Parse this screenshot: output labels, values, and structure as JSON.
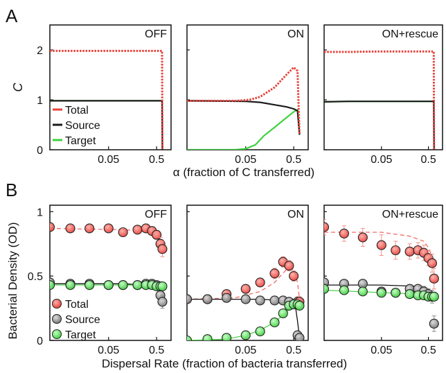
{
  "colors": {
    "total": "#e8413a",
    "source": "#1a1a1a",
    "target": "#3fd13f"
  },
  "chart_data": [
    {
      "panel_letter": "A",
      "type": "line",
      "ylabel": "C",
      "xlabel": "α (fraction of C transferred)",
      "x_scale": "log",
      "xlim": [
        0.003,
        1
      ],
      "ylim": [
        0,
        2.5
      ],
      "y_ticks": [
        "0",
        "1",
        "2"
      ],
      "x_ticks": [
        "0.05",
        "0.5"
      ],
      "legend": [
        "Total",
        "Source",
        "Target"
      ],
      "legend_position": "bottom-left of first subplot",
      "subplots": [
        {
          "title": "OFF",
          "series": [
            {
              "name": "Total",
              "style": "dotted",
              "x": [
                0.003,
                0.01,
                0.05,
                0.2,
                0.5,
                0.6,
                0.65,
                0.66
              ],
              "y": [
                1.98,
                1.98,
                1.98,
                1.98,
                1.98,
                1.98,
                1.98,
                0.0
              ]
            },
            {
              "name": "Source",
              "style": "solid",
              "x": [
                0.003,
                0.01,
                0.05,
                0.2,
                0.5,
                0.6,
                0.65,
                0.66
              ],
              "y": [
                0.98,
                0.98,
                0.98,
                0.98,
                0.98,
                0.98,
                0.98,
                0.0
              ]
            },
            {
              "name": "Target",
              "style": "solid",
              "x": [
                0.003,
                0.01,
                0.05,
                0.2,
                0.5,
                0.6,
                0.65
              ],
              "y": [
                0.98,
                0.98,
                0.98,
                0.98,
                0.98,
                0.98,
                0.98
              ]
            }
          ]
        },
        {
          "title": "ON",
          "series": [
            {
              "name": "Total",
              "style": "dotted",
              "x": [
                0.003,
                0.03,
                0.06,
                0.1,
                0.2,
                0.35,
                0.5,
                0.6,
                0.66
              ],
              "y": [
                0.98,
                0.98,
                1.0,
                1.06,
                1.25,
                1.5,
                1.65,
                1.58,
                0.3
              ]
            },
            {
              "name": "Source",
              "style": "solid",
              "x": [
                0.003,
                0.05,
                0.1,
                0.2,
                0.35,
                0.5,
                0.6,
                0.66
              ],
              "y": [
                0.98,
                0.97,
                0.95,
                0.9,
                0.86,
                0.82,
                0.78,
                0.3
              ]
            },
            {
              "name": "Target",
              "style": "solid",
              "x": [
                0.003,
                0.03,
                0.05,
                0.08,
                0.12,
                0.2,
                0.35,
                0.5,
                0.6,
                0.66
              ],
              "y": [
                0.0,
                0.0,
                0.02,
                0.1,
                0.28,
                0.45,
                0.64,
                0.76,
                0.8,
                0.3
              ]
            }
          ]
        },
        {
          "title": "ON+rescue",
          "series": [
            {
              "name": "Total",
              "style": "dotted",
              "x": [
                0.003,
                0.01,
                0.05,
                0.2,
                0.5,
                0.65,
                0.66
              ],
              "y": [
                1.96,
                1.96,
                1.97,
                1.97,
                1.97,
                1.97,
                0.0
              ]
            },
            {
              "name": "Source",
              "style": "solid",
              "x": [
                0.003,
                0.01,
                0.05,
                0.2,
                0.5,
                0.65,
                0.66
              ],
              "y": [
                0.96,
                0.97,
                0.97,
                0.97,
                0.97,
                0.97,
                0.0
              ]
            },
            {
              "name": "Target",
              "style": "solid",
              "x": [
                0.003,
                0.01,
                0.05,
                0.2,
                0.5,
                0.65
              ],
              "y": [
                0.96,
                0.97,
                0.97,
                0.97,
                0.97,
                0.97
              ]
            }
          ]
        }
      ]
    },
    {
      "panel_letter": "B",
      "type": "scatter",
      "ylabel": "Bacterial Density (OD)",
      "xlabel": "Dispersal Rate (fraction of bacteria transferred)",
      "x_scale": "log",
      "xlim": [
        0.003,
        1
      ],
      "ylim": [
        0,
        1.05
      ],
      "y_ticks": [
        "0",
        "0.5",
        "1"
      ],
      "x_ticks": [
        "0.05",
        "0.5"
      ],
      "legend": [
        "Total",
        "Source",
        "Target"
      ],
      "legend_position": "bottom-left of first subplot",
      "subplots": [
        {
          "title": "OFF",
          "series": [
            {
              "name": "Total",
              "x": [
                0.003,
                0.008,
                0.02,
                0.05,
                0.1,
                0.2,
                0.3,
                0.4,
                0.5,
                0.6,
                0.66
              ],
              "y": [
                0.88,
                0.87,
                0.87,
                0.87,
                0.84,
                0.86,
                0.87,
                0.85,
                0.82,
                0.75,
                0.71
              ],
              "err": [
                0.02,
                0.02,
                0.02,
                0.02,
                0.02,
                0.03,
                0.02,
                0.02,
                0.03,
                0.05,
                0.06
              ],
              "fit_x": [
                0.003,
                0.1,
                0.3,
                0.5,
                0.6,
                0.66
              ],
              "fit_y": [
                0.87,
                0.86,
                0.85,
                0.82,
                0.76,
                0.68
              ]
            },
            {
              "name": "Source",
              "x": [
                0.003,
                0.008,
                0.02,
                0.05,
                0.1,
                0.2,
                0.3,
                0.4,
                0.5,
                0.6,
                0.66
              ],
              "y": [
                0.45,
                0.44,
                0.44,
                0.43,
                0.43,
                0.43,
                0.44,
                0.44,
                0.43,
                0.35,
                0.3
              ],
              "err": [
                0.02,
                0.02,
                0.02,
                0.02,
                0.02,
                0.02,
                0.02,
                0.02,
                0.02,
                0.04,
                0.05
              ],
              "fit_x": [
                0.003,
                0.1,
                0.3,
                0.5,
                0.6,
                0.66
              ],
              "fit_y": [
                0.44,
                0.44,
                0.43,
                0.42,
                0.37,
                0.3
              ]
            },
            {
              "name": "Target",
              "x": [
                0.003,
                0.008,
                0.02,
                0.05,
                0.1,
                0.2,
                0.3,
                0.4,
                0.5,
                0.6,
                0.66
              ],
              "y": [
                0.43,
                0.43,
                0.43,
                0.43,
                0.43,
                0.43,
                0.43,
                0.43,
                0.42,
                0.42,
                0.42
              ],
              "err": [
                0.01,
                0.01,
                0.01,
                0.01,
                0.01,
                0.01,
                0.01,
                0.01,
                0.01,
                0.02,
                0.02
              ],
              "fit_x": [
                0.003,
                0.3,
                0.66
              ],
              "fit_y": [
                0.43,
                0.43,
                0.42
              ]
            }
          ]
        },
        {
          "title": "ON",
          "series": [
            {
              "name": "Total",
              "x": [
                0.003,
                0.008,
                0.02,
                0.05,
                0.1,
                0.2,
                0.3,
                0.4,
                0.5,
                0.6,
                0.66
              ],
              "y": [
                0.32,
                0.32,
                0.36,
                0.4,
                0.45,
                0.52,
                0.61,
                0.58,
                0.5,
                0.3,
                0.3
              ],
              "err": [
                0.02,
                0.02,
                0.03,
                0.03,
                0.03,
                0.04,
                0.04,
                0.04,
                0.04,
                0.04,
                0.04
              ],
              "fit_x": [
                0.003,
                0.03,
                0.1,
                0.2,
                0.35,
                0.5,
                0.6,
                0.66
              ],
              "fit_y": [
                0.32,
                0.33,
                0.38,
                0.45,
                0.55,
                0.55,
                0.45,
                0.32
              ]
            },
            {
              "name": "Source",
              "x": [
                0.003,
                0.008,
                0.02,
                0.05,
                0.1,
                0.2,
                0.3,
                0.4,
                0.5,
                0.6,
                0.66
              ],
              "y": [
                0.32,
                0.32,
                0.33,
                0.32,
                0.31,
                0.31,
                0.31,
                0.3,
                0.28,
                0.04,
                0.02
              ],
              "err": [
                0.02,
                0.02,
                0.02,
                0.02,
                0.02,
                0.02,
                0.02,
                0.03,
                0.03,
                0.02,
                0.02
              ],
              "fit_x": [
                0.003,
                0.1,
                0.3,
                0.45,
                0.55,
                0.6,
                0.66
              ],
              "fit_y": [
                0.32,
                0.32,
                0.31,
                0.3,
                0.25,
                0.15,
                0.02
              ]
            },
            {
              "name": "Target",
              "x": [
                0.003,
                0.008,
                0.02,
                0.05,
                0.1,
                0.2,
                0.3,
                0.4,
                0.5,
                0.6,
                0.66
              ],
              "y": [
                0.0,
                0.01,
                0.02,
                0.04,
                0.07,
                0.14,
                0.21,
                0.27,
                0.28,
                0.28,
                0.27
              ],
              "err": [
                0.01,
                0.01,
                0.01,
                0.01,
                0.02,
                0.02,
                0.03,
                0.03,
                0.03,
                0.03,
                0.03
              ],
              "fit_x": [
                0.003,
                0.02,
                0.05,
                0.1,
                0.2,
                0.35,
                0.5,
                0.66
              ],
              "fit_y": [
                0.0,
                0.01,
                0.04,
                0.08,
                0.14,
                0.22,
                0.27,
                0.28
              ]
            }
          ]
        },
        {
          "title": "ON+rescue",
          "series": [
            {
              "name": "Total",
              "x": [
                0.003,
                0.008,
                0.02,
                0.05,
                0.1,
                0.2,
                0.3,
                0.4,
                0.5,
                0.6,
                0.66
              ],
              "y": [
                0.88,
                0.83,
                0.8,
                0.74,
                0.7,
                0.69,
                0.7,
                0.68,
                0.64,
                0.6,
                0.48
              ],
              "err": [
                0.06,
                0.06,
                0.07,
                0.08,
                0.07,
                0.06,
                0.06,
                0.06,
                0.06,
                0.07,
                0.08
              ],
              "fit_x": [
                0.003,
                0.05,
                0.2,
                0.4,
                0.5,
                0.6,
                0.66
              ],
              "fit_y": [
                0.84,
                0.84,
                0.81,
                0.77,
                0.72,
                0.65,
                0.55
              ]
            },
            {
              "name": "Source",
              "x": [
                0.003,
                0.008,
                0.02,
                0.05,
                0.1,
                0.2,
                0.3,
                0.4,
                0.5,
                0.6,
                0.66
              ],
              "y": [
                0.45,
                0.44,
                0.44,
                0.38,
                0.37,
                0.4,
                0.4,
                0.38,
                0.36,
                0.34,
                0.13
              ],
              "err": [
                0.03,
                0.03,
                0.03,
                0.03,
                0.03,
                0.03,
                0.03,
                0.04,
                0.04,
                0.05,
                0.06
              ],
              "fit_x": [
                0.003,
                0.05,
                0.3,
                0.5,
                0.6,
                0.66
              ],
              "fit_y": [
                0.43,
                0.43,
                0.42,
                0.4,
                0.37,
                0.33
              ]
            },
            {
              "name": "Target",
              "x": [
                0.003,
                0.008,
                0.02,
                0.05,
                0.1,
                0.2,
                0.3,
                0.4,
                0.5,
                0.6,
                0.66
              ],
              "y": [
                0.4,
                0.39,
                0.38,
                0.37,
                0.37,
                0.36,
                0.35,
                0.35,
                0.34,
                0.34,
                0.34
              ],
              "err": [
                0.02,
                0.02,
                0.02,
                0.02,
                0.02,
                0.02,
                0.02,
                0.02,
                0.02,
                0.03,
                0.03
              ],
              "fit_x": [
                0.003,
                0.3,
                0.66
              ],
              "fit_y": [
                0.39,
                0.36,
                0.34
              ]
            }
          ]
        }
      ]
    }
  ]
}
